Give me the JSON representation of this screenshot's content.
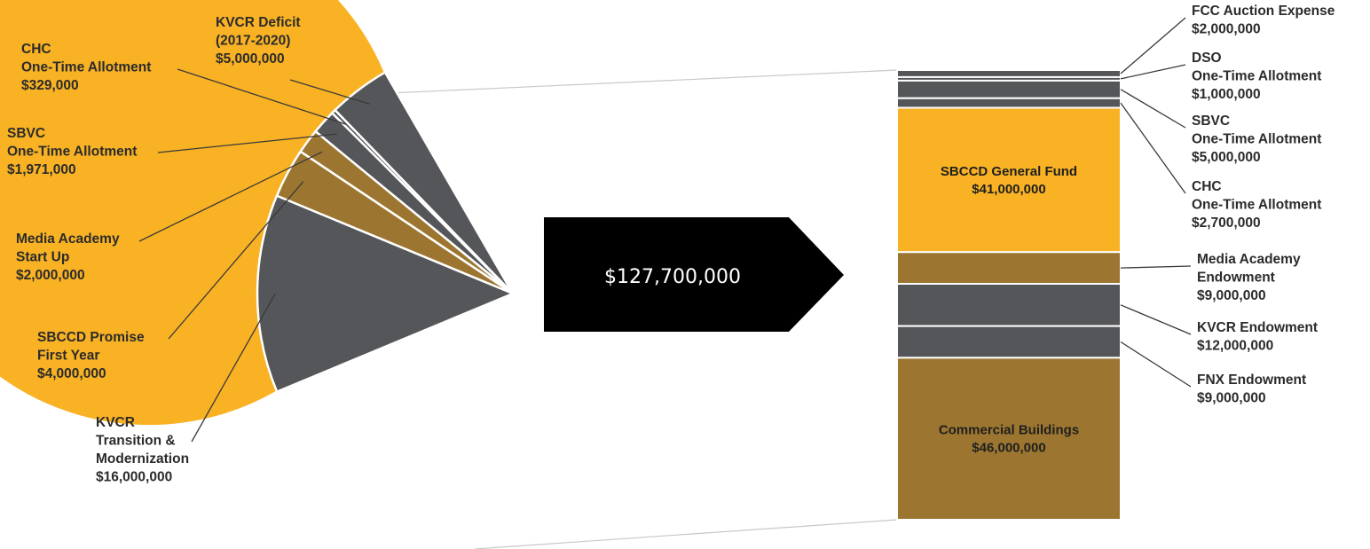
{
  "colors": {
    "yellow": "#F9B224",
    "gray": "#555659",
    "bronze": "#9C7630",
    "banner": "#000000"
  },
  "chart_data": {
    "type": "bar-of-pie",
    "total_label": "$127,700,000",
    "pie": {
      "slices": [
        {
          "key": "kvcr_deficit",
          "label_lines": [
            "KVCR Deficit",
            "(2017-2020)",
            "$5,000,000"
          ],
          "value": 5000000,
          "color": "gray"
        },
        {
          "key": "chc",
          "label_lines": [
            "CHC",
            "One-Time Allotment",
            "$329,000"
          ],
          "value": 329000,
          "color": "gray"
        },
        {
          "key": "sbvc",
          "label_lines": [
            "SBVC",
            "One-Time Allotment",
            "$1,971,000"
          ],
          "value": 1971000,
          "color": "gray"
        },
        {
          "key": "media_academy",
          "label_lines": [
            "Media Academy",
            "Start Up",
            "$2,000,000"
          ],
          "value": 2000000,
          "color": "bronze"
        },
        {
          "key": "promise",
          "label_lines": [
            "SBCCD Promise",
            "First Year",
            "$4,000,000"
          ],
          "value": 4000000,
          "color": "bronze"
        },
        {
          "key": "kvcr_transition",
          "label_lines": [
            "KVCR",
            "Transition &",
            "Modernization",
            "$16,000,000"
          ],
          "value": 16000000,
          "color": "gray"
        }
      ],
      "other_value": 127700000,
      "other_color": "yellow"
    },
    "bar": {
      "segments": [
        {
          "key": "fcc",
          "label_lines": [
            "FCC Auction Expense",
            "$2,000,000"
          ],
          "value": 2000000,
          "color": "gray",
          "label_side": "outside"
        },
        {
          "key": "dso",
          "label_lines": [
            "DSO",
            "One-Time Allotment",
            "$1,000,000"
          ],
          "value": 1000000,
          "color": "gray",
          "label_side": "outside"
        },
        {
          "key": "sbvc",
          "label_lines": [
            "SBVC",
            "One-Time Allotment",
            "$5,000,000"
          ],
          "value": 5000000,
          "color": "gray",
          "label_side": "outside"
        },
        {
          "key": "chc",
          "label_lines": [
            "CHC",
            "One-Time Allotment",
            "$2,700,000"
          ],
          "value": 2700000,
          "color": "gray",
          "label_side": "outside"
        },
        {
          "key": "general_fund",
          "label_lines": [
            "SBCCD General Fund",
            "$41,000,000"
          ],
          "value": 41000000,
          "color": "yellow",
          "label_side": "inside"
        },
        {
          "key": "media_endowment",
          "label_lines": [
            "Media Academy",
            "Endowment",
            "$9,000,000"
          ],
          "value": 9000000,
          "color": "bronze",
          "label_side": "outside"
        },
        {
          "key": "kvcr_endowment",
          "label_lines": [
            "KVCR Endowment",
            "$12,000,000"
          ],
          "value": 12000000,
          "color": "gray",
          "label_side": "outside"
        },
        {
          "key": "fnx_endowment",
          "label_lines": [
            "FNX Endowment",
            "$9,000,000"
          ],
          "value": 9000000,
          "color": "gray",
          "label_side": "outside"
        },
        {
          "key": "commercial",
          "label_lines": [
            "Commercial Buildings",
            "$46,000,000"
          ],
          "value": 46000000,
          "color": "bronze",
          "label_side": "inside"
        }
      ]
    }
  }
}
